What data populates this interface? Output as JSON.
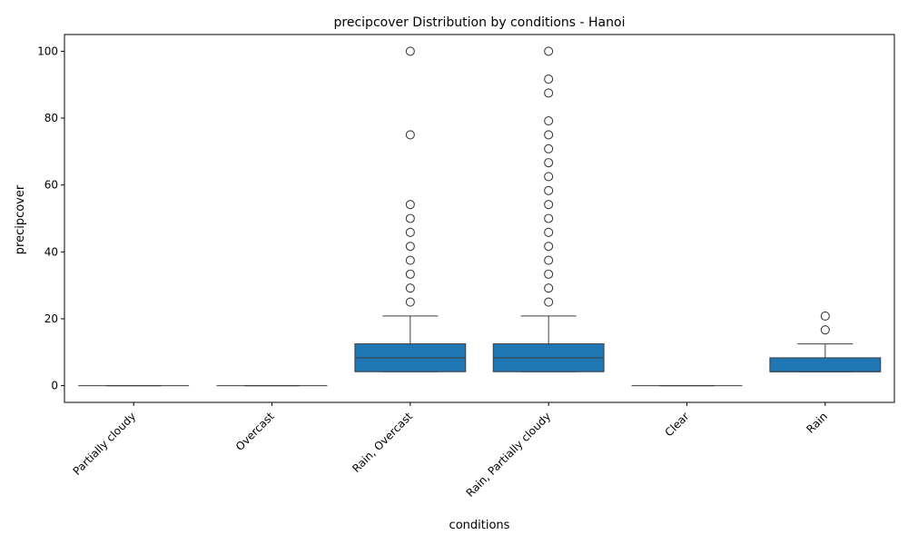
{
  "chart_data": {
    "type": "box",
    "title": "precipcover Distribution by conditions - Hanoi",
    "xlabel": "conditions",
    "ylabel": "precipcover",
    "ylim": [
      -5,
      105
    ],
    "yticks": [
      0,
      20,
      40,
      60,
      80,
      100
    ],
    "grid": false,
    "legend": "none",
    "box_color": "#1f77b4",
    "line_color": "#3d3d3d",
    "categories": [
      "Partially cloudy",
      "Overcast",
      "Rain, Overcast",
      "Rain, Partially cloudy",
      "Clear",
      "Rain"
    ],
    "boxes": [
      {
        "whisker_low": 0,
        "q1": 0,
        "median": 0,
        "q3": 0,
        "whisker_high": 0,
        "outliers": []
      },
      {
        "whisker_low": 0,
        "q1": 0,
        "median": 0,
        "q3": 0,
        "whisker_high": 0,
        "outliers": []
      },
      {
        "whisker_low": 4.17,
        "q1": 4.17,
        "median": 8.33,
        "q3": 12.5,
        "whisker_high": 20.83,
        "outliers": [
          25,
          29.17,
          33.33,
          37.5,
          41.67,
          45.83,
          50,
          54.17,
          75,
          100
        ]
      },
      {
        "whisker_low": 4.17,
        "q1": 4.17,
        "median": 8.33,
        "q3": 12.5,
        "whisker_high": 20.83,
        "outliers": [
          25,
          29.17,
          33.33,
          37.5,
          41.67,
          45.83,
          50,
          54.17,
          58.33,
          62.5,
          66.67,
          70.83,
          75,
          79.17,
          87.5,
          91.67,
          100
        ]
      },
      {
        "whisker_low": 0,
        "q1": 0,
        "median": 0,
        "q3": 0,
        "whisker_high": 0,
        "outliers": []
      },
      {
        "whisker_low": 4.17,
        "q1": 4.17,
        "median": 4.17,
        "q3": 8.33,
        "whisker_high": 12.5,
        "outliers": [
          16.67,
          20.83
        ]
      }
    ]
  }
}
